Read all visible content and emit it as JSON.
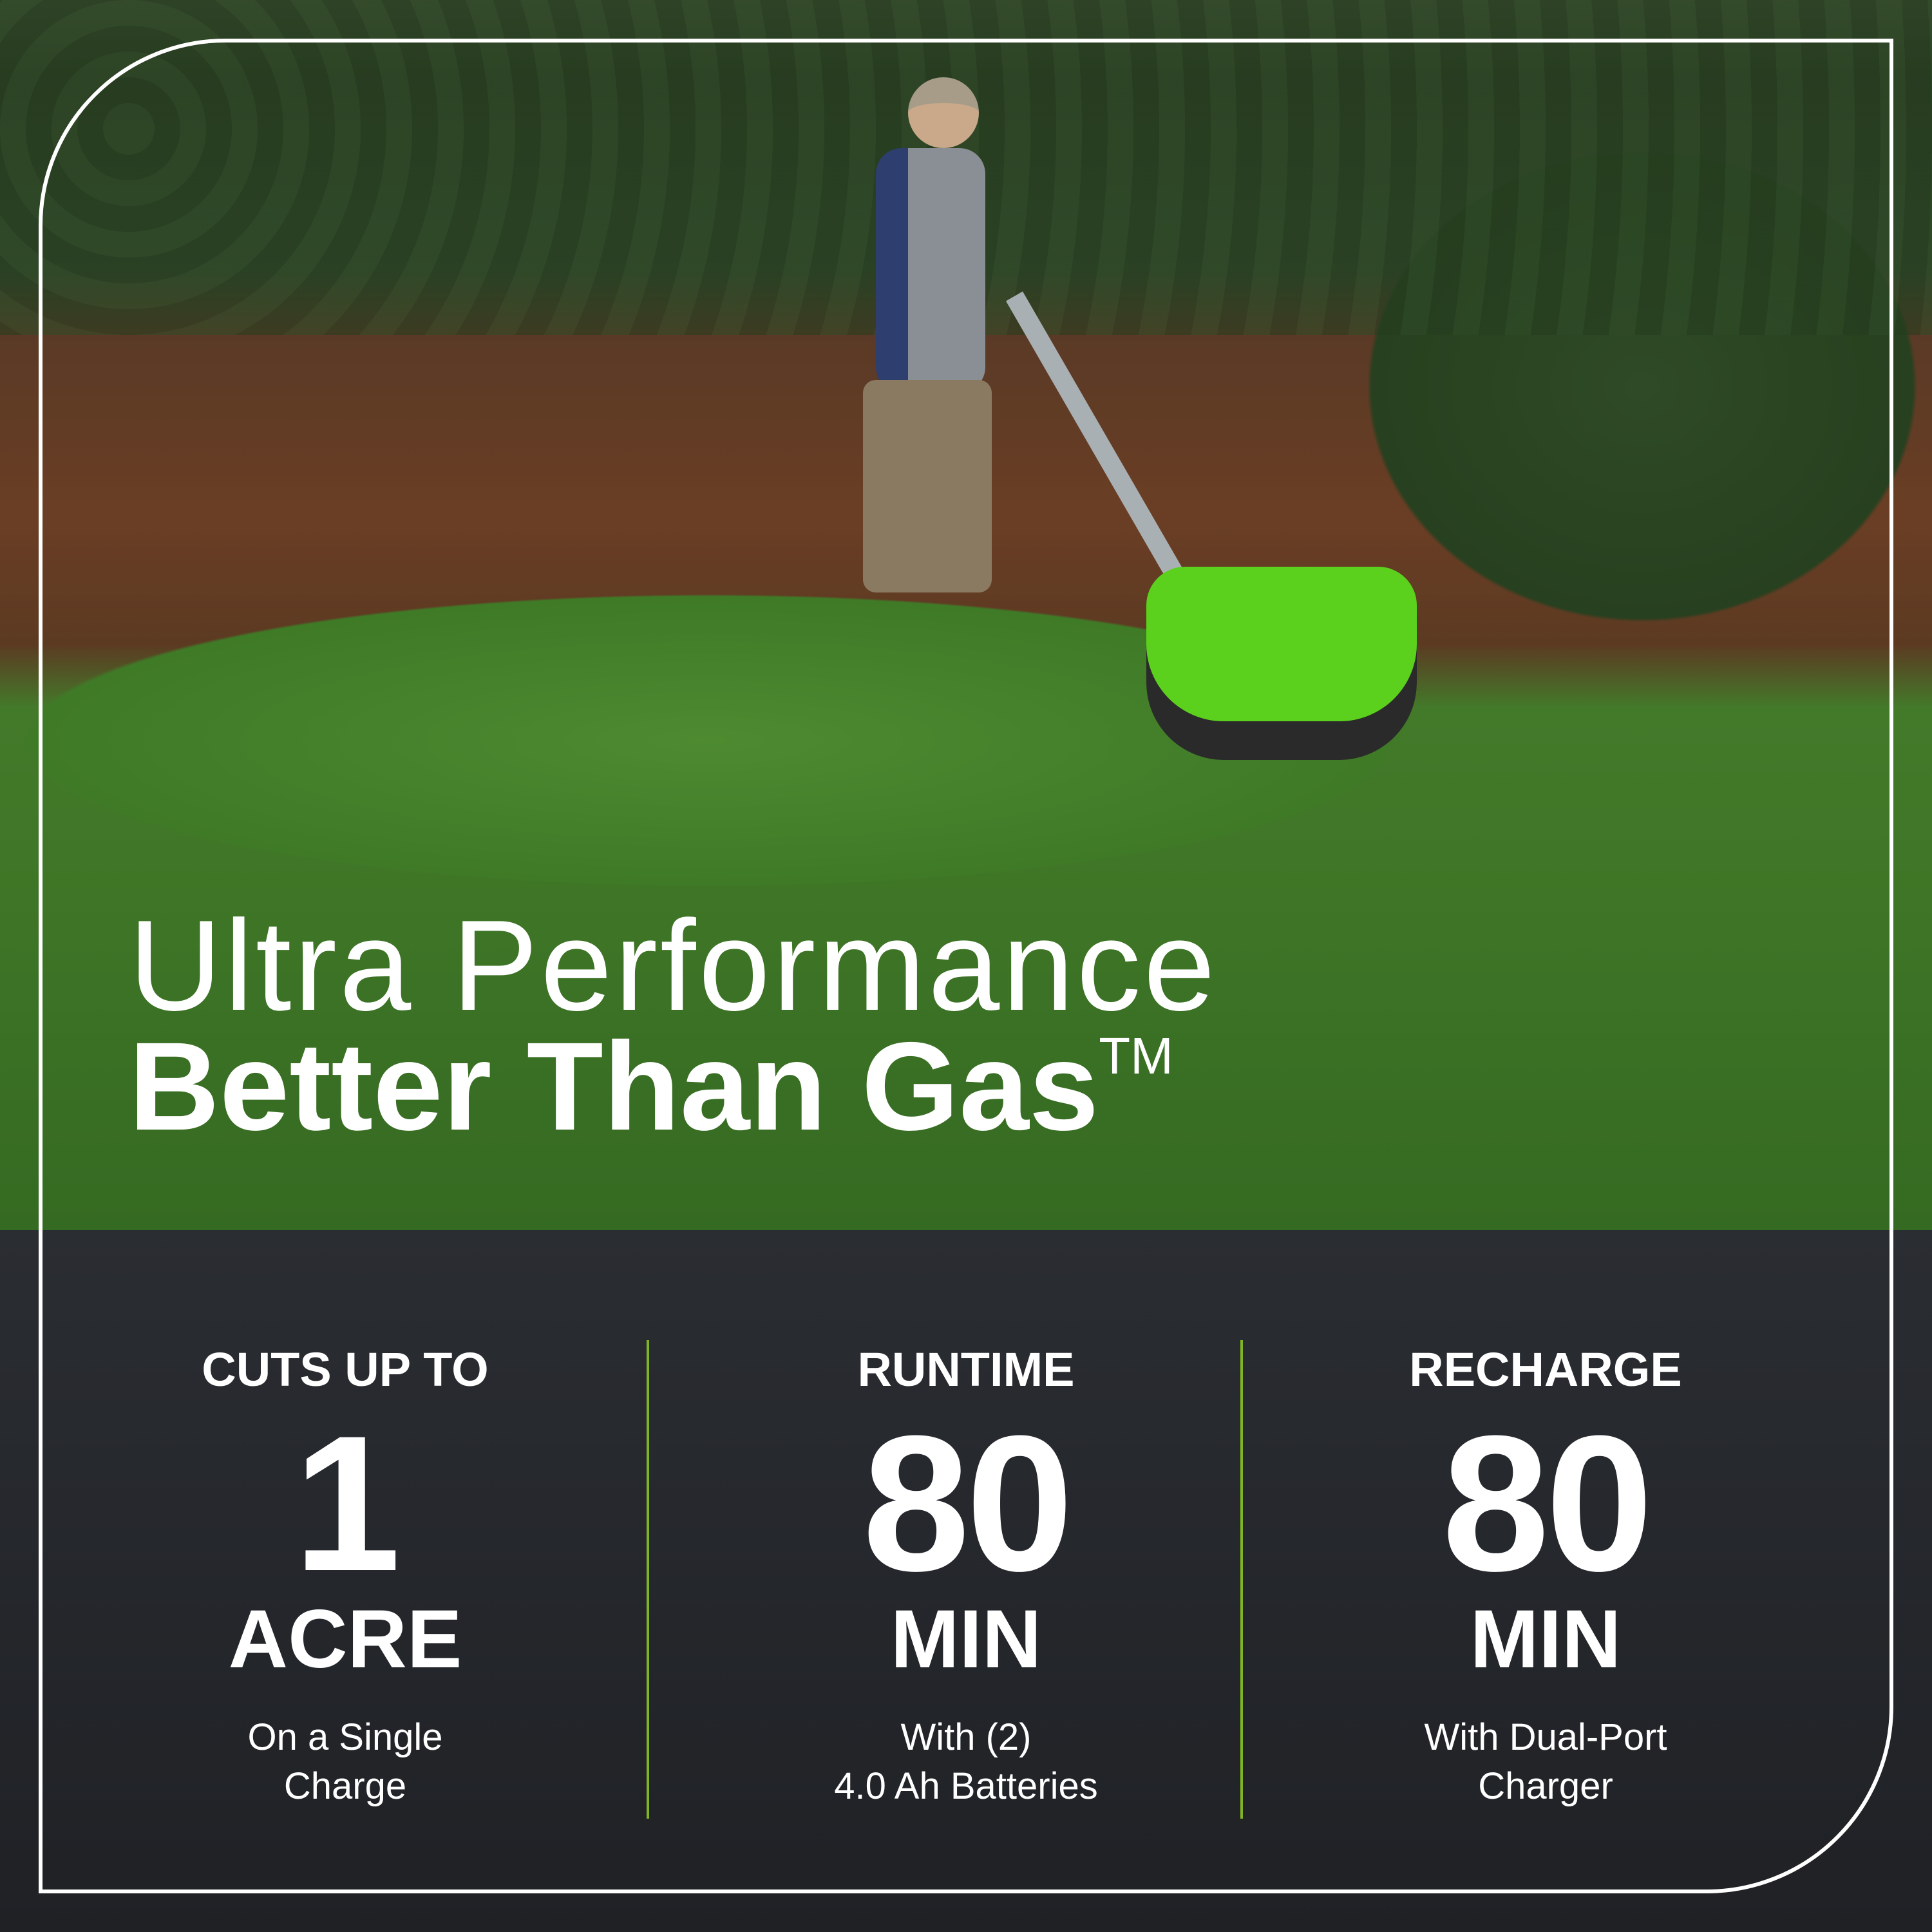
{
  "headline": {
    "line1": "Ultra Performance",
    "line2": "Better Than Gas",
    "trademark": "TM"
  },
  "stats": [
    {
      "label": "CUTS UP TO",
      "value": "1",
      "unit": "ACRE",
      "note": "On a Single\nCharge"
    },
    {
      "label": "RUNTIME",
      "value": "80",
      "unit": "MIN",
      "note": "With (2)\n4.0 Ah Batteries"
    },
    {
      "label": "RECHARGE",
      "value": "80",
      "unit": "MIN",
      "note": "With Dual-Port\nCharger"
    }
  ],
  "colors": {
    "panel": "#222428",
    "divider": "#7fb524",
    "mower": "#5bd11d",
    "frame": "#ffffff"
  }
}
